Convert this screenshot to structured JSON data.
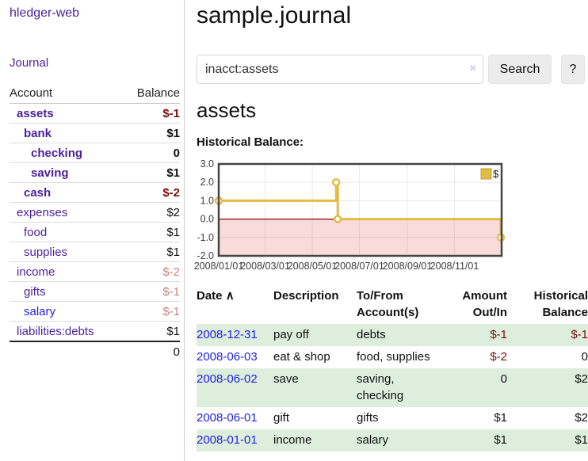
{
  "app": {
    "title": "hledger-web"
  },
  "sidebar": {
    "journal_label": "Journal",
    "columns": {
      "account": "Account",
      "balance": "Balance"
    },
    "accounts": [
      {
        "name": "assets",
        "balance": "$-1",
        "indent": 0,
        "bold": true
      },
      {
        "name": "bank",
        "balance": "$1",
        "indent": 1,
        "bold": true
      },
      {
        "name": "checking",
        "balance": "0",
        "indent": 2,
        "bold": true
      },
      {
        "name": "saving",
        "balance": "$1",
        "indent": 2,
        "bold": true
      },
      {
        "name": "cash",
        "balance": "$-2",
        "indent": 1,
        "bold": true
      },
      {
        "name": "expenses",
        "balance": "$2",
        "indent": 0,
        "bold": false
      },
      {
        "name": "food",
        "balance": "$1",
        "indent": 1,
        "bold": false
      },
      {
        "name": "supplies",
        "balance": "$1",
        "indent": 1,
        "bold": false
      },
      {
        "name": "income",
        "balance": "$-2",
        "indent": 0,
        "bold": false
      },
      {
        "name": "gifts",
        "balance": "$-1",
        "indent": 1,
        "bold": false
      },
      {
        "name": "salary",
        "balance": "$-1",
        "indent": 1,
        "bold": false,
        "link_color": "#2222dd"
      },
      {
        "name": "liabilities:debts",
        "balance": "$1",
        "indent": 0,
        "bold": false
      }
    ],
    "total": "0"
  },
  "header": {
    "title": "sample.journal"
  },
  "search": {
    "value": "inacct:assets",
    "button_label": "Search",
    "help_label": "?"
  },
  "icons": {
    "clear": "×",
    "sort_asc": "∧"
  },
  "account_page": {
    "heading": "assets"
  },
  "chart_data": {
    "type": "line",
    "title": "Historical Balance:",
    "x_axis": {
      "min": "2008-01-01",
      "max": "2009-01-01",
      "ticks": [
        "2008/01/01",
        "2008/03/01",
        "2008/05/01",
        "2008/07/01",
        "2008/09/01",
        "2008/11/01"
      ]
    },
    "y_axis": {
      "min": -2,
      "max": 3,
      "ticks": [
        3.0,
        2.0,
        1.0,
        0.0,
        -1.0,
        -2.0
      ]
    },
    "series": [
      {
        "name": "$",
        "color": "#e2bc45",
        "step": true,
        "marker": "circle",
        "points": [
          {
            "date": "2008-01-01",
            "value": 1
          },
          {
            "date": "2008-06-01",
            "value": 2
          },
          {
            "date": "2008-06-03",
            "value": 0
          },
          {
            "date": "2008-12-31",
            "value": -1
          }
        ]
      }
    ],
    "negative_region_color": "#fadbdb",
    "zero_line_color": "#8b0000",
    "legend_position": "top-right",
    "grid": true
  },
  "register": {
    "columns": {
      "date": "Date",
      "description": "Description",
      "accounts": "To/From Account(s)",
      "amount": "Amount Out/In",
      "balance": "Historical Balance"
    },
    "rows": [
      {
        "date": "2008-12-31",
        "description": "pay off",
        "accounts": "debts",
        "amount": "$-1",
        "balance": "$-1"
      },
      {
        "date": "2008-06-03",
        "description": "eat & shop",
        "accounts": "food, supplies",
        "amount": "$-2",
        "balance": "0"
      },
      {
        "date": "2008-06-02",
        "description": "save",
        "accounts": "saving, checking",
        "amount": "0",
        "balance": "$2"
      },
      {
        "date": "2008-06-01",
        "description": "gift",
        "accounts": "gifts",
        "amount": "$1",
        "balance": "$2"
      },
      {
        "date": "2008-01-01",
        "description": "income",
        "accounts": "salary",
        "amount": "$1",
        "balance": "$1"
      }
    ]
  },
  "colors": {
    "accent_purple": "#4a1f9e",
    "link_blue": "#2222dd",
    "negative_strong": "#7a0c0c",
    "negative_soft": "#c9807f",
    "row_green": "#ddeedd",
    "chart_line_gold": "#e2bc45"
  }
}
